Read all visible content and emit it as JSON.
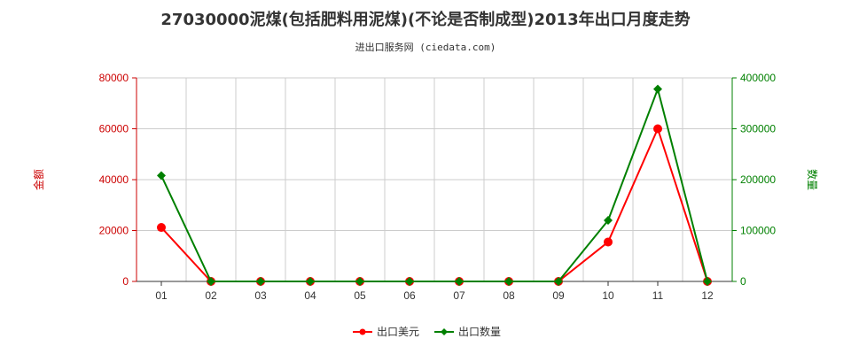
{
  "chart_data": {
    "type": "line",
    "title": "27030000泥煤(包括肥料用泥煤)(不论是否制成型)2013年出口月度走势",
    "subtitle": "进出口服务网 (ciedata.com)",
    "categories": [
      "01",
      "02",
      "03",
      "04",
      "05",
      "06",
      "07",
      "08",
      "09",
      "10",
      "11",
      "12"
    ],
    "ylabel_left": "金额",
    "ylabel_right": "数量",
    "ylim_left": [
      0,
      80000
    ],
    "ylim_right": [
      0,
      400000
    ],
    "yticks_left": [
      "0",
      "20000",
      "40000",
      "60000",
      "80000"
    ],
    "yticks_right": [
      "0",
      "100000",
      "200000",
      "300000",
      "400000"
    ],
    "grid": true,
    "legend_position": "bottom-center",
    "series": [
      {
        "name": "出口美元",
        "axis": "left",
        "color": "#ff0000",
        "values": [
          21200,
          0,
          0,
          0,
          0,
          0,
          0,
          0,
          0,
          15500,
          60000,
          0
        ]
      },
      {
        "name": "出口数量",
        "axis": "right",
        "color": "#008000",
        "values": [
          208000,
          0,
          0,
          0,
          0,
          0,
          0,
          0,
          0,
          120000,
          378000,
          0
        ]
      }
    ],
    "colors": {
      "left_axis": "#cc0000",
      "right_axis": "#008000",
      "grid": "#cccccc"
    }
  }
}
